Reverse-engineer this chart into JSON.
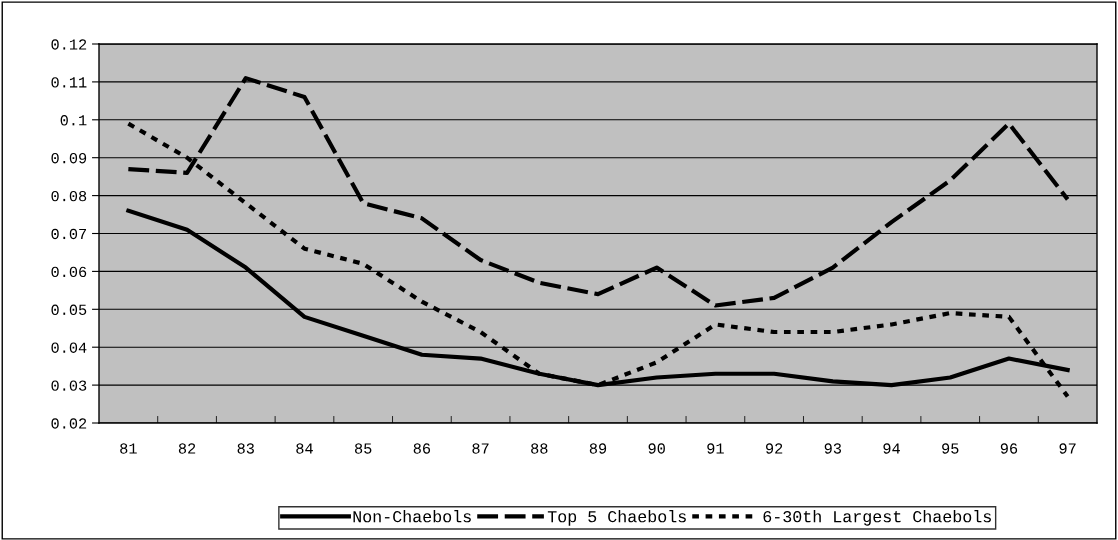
{
  "chart_data": {
    "type": "line",
    "categories": [
      "81",
      "82",
      "83",
      "84",
      "85",
      "86",
      "87",
      "88",
      "89",
      "90",
      "91",
      "92",
      "93",
      "94",
      "95",
      "96",
      "97"
    ],
    "series": [
      {
        "name": "Non-Chaebols",
        "color": "#000000",
        "line_style": "solid",
        "values": [
          0.076,
          0.071,
          0.061,
          0.048,
          0.043,
          0.038,
          0.037,
          0.033,
          0.03,
          0.032,
          0.033,
          0.033,
          0.031,
          0.03,
          0.032,
          0.037,
          0.034
        ]
      },
      {
        "name": "Top 5 Chaebols",
        "color": "#000000",
        "line_style": "dashed",
        "values": [
          0.087,
          0.086,
          0.111,
          0.106,
          0.078,
          0.074,
          0.063,
          0.057,
          0.054,
          0.061,
          0.051,
          0.053,
          0.061,
          0.073,
          0.084,
          0.099,
          0.079
        ]
      },
      {
        "name": "6-30th Largest Chaebols",
        "color": "#000000",
        "line_style": "dotted",
        "values": [
          0.099,
          0.09,
          0.078,
          0.066,
          0.062,
          0.052,
          0.044,
          0.033,
          0.03,
          0.036,
          0.046,
          0.044,
          0.044,
          0.046,
          0.049,
          0.048,
          0.027
        ]
      }
    ],
    "ylim": [
      0.02,
      0.12
    ],
    "yticks": [
      {
        "value": 0.02,
        "label": "0.02"
      },
      {
        "value": 0.03,
        "label": "0.03"
      },
      {
        "value": 0.04,
        "label": "0.04"
      },
      {
        "value": 0.05,
        "label": "0.05"
      },
      {
        "value": 0.06,
        "label": "0.06"
      },
      {
        "value": 0.07,
        "label": "0.07"
      },
      {
        "value": 0.08,
        "label": "0.08"
      },
      {
        "value": 0.09,
        "label": "0.09"
      },
      {
        "value": 0.1,
        "label": "0.1"
      },
      {
        "value": 0.11,
        "label": "0.11"
      },
      {
        "value": 0.12,
        "label": "0.12"
      }
    ],
    "grid": "y",
    "legend": "bottom",
    "marker": "none"
  }
}
